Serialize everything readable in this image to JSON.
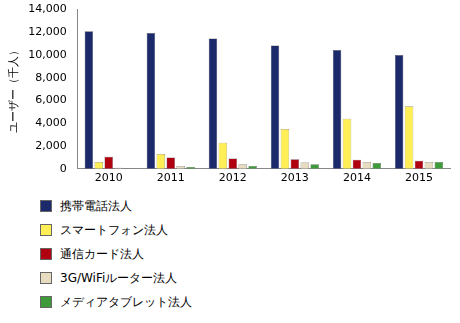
{
  "chart_data": {
    "type": "bar",
    "y_label": "ユーザー（千人）",
    "categories": [
      "2010",
      "2011",
      "2012",
      "2013",
      "2014",
      "2015"
    ],
    "series": [
      {
        "name": "携帯電話法人",
        "color": "#1c2a6b",
        "values": [
          12100,
          11950,
          11450,
          10850,
          10450,
          10000
        ]
      },
      {
        "name": "スマートフォン法人",
        "color": "#ffee55",
        "values": [
          600,
          1300,
          2300,
          3500,
          4400,
          5500
        ]
      },
      {
        "name": "通信カード法人",
        "color": "#b00010",
        "values": [
          1050,
          1000,
          900,
          850,
          800,
          700
        ]
      },
      {
        "name": "3G/WiFiルーター法人",
        "color": "#e8dcc0",
        "values": [
          100,
          250,
          400,
          550,
          600,
          600
        ]
      },
      {
        "name": "メディアタブレット法人",
        "color": "#3f9a3a",
        "values": [
          30,
          150,
          250,
          400,
          500,
          600
        ]
      }
    ],
    "ylim": [
      0,
      14000
    ],
    "yticks": [
      0,
      {
        "value": 2000,
        "label": "2,000"
      },
      {
        "value": 4000,
        "label": "4,000"
      },
      {
        "value": 6000,
        "label": "6,000"
      },
      {
        "value": 8000,
        "label": "8,000"
      },
      {
        "value": 10000,
        "label": "10,000"
      },
      {
        "value": 12000,
        "label": "12,000"
      },
      {
        "value": 14000,
        "label": "14,000"
      }
    ],
    "grid": false,
    "legend": "bottom"
  }
}
